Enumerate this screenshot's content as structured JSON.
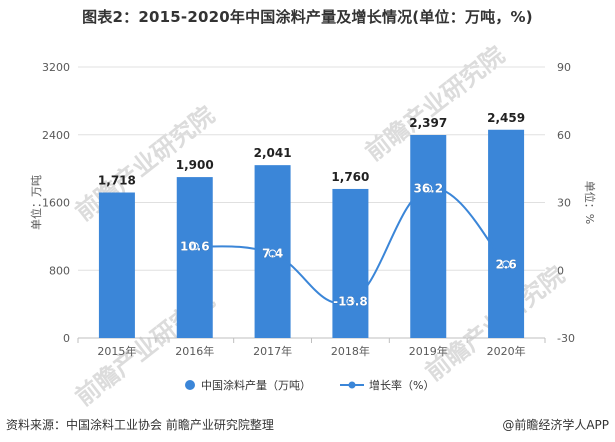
{
  "title": "图表2：2015-2020年中国涂料产量及增长情况(单位：万吨，%)",
  "source": "资料来源：中国涂料工业协会 前瞻产业研究院整理",
  "brand": "@前瞻经济学人APP",
  "watermark": "前瞻产业研究院",
  "colors": {
    "bar": "#3b86d8",
    "line": "#3b86d8",
    "grid": "#e0e0e0",
    "axis_text": "#595959"
  },
  "chart_data": {
    "type": "bar",
    "categories": [
      "2015年",
      "2016年",
      "2017年",
      "2018年",
      "2019年",
      "2020年"
    ],
    "series": [
      {
        "name": "中国涂料产量（万吨）",
        "type": "bar",
        "axis": "left",
        "values": [
          1718,
          1900,
          2041,
          1760,
          2397,
          2459
        ],
        "labels": [
          "1,718",
          "1,900",
          "2,041",
          "1,760",
          "2,397",
          "2,459"
        ]
      },
      {
        "name": "增长率（%）",
        "type": "line",
        "axis": "right",
        "values": [
          null,
          10.6,
          7.4,
          -13.8,
          36.2,
          2.6
        ],
        "labels": [
          "",
          "10.6",
          "7.4",
          "-13.8",
          "36.2",
          "2.6"
        ]
      }
    ],
    "ylabel": "单位：万吨",
    "y2label": "单位：%",
    "ylim": [
      0,
      3200
    ],
    "y2lim": [
      -30,
      90
    ],
    "yticks": [
      "0",
      "800",
      "1600",
      "2400",
      "3200"
    ],
    "y2ticks": [
      "-30",
      "0",
      "30",
      "60",
      "90"
    ],
    "grid": true,
    "legend": "bottom"
  }
}
